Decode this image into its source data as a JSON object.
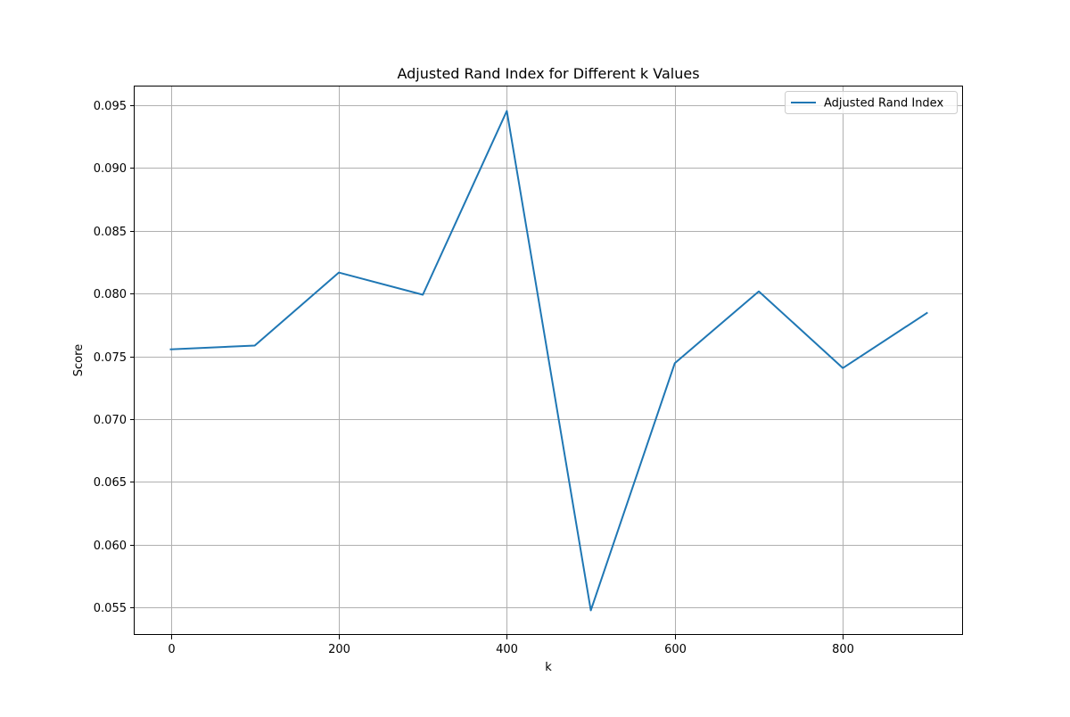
{
  "chart_data": {
    "type": "line",
    "title": "Adjusted Rand Index for Different k Values",
    "xlabel": "k",
    "ylabel": "Score",
    "x": [
      0,
      100,
      200,
      300,
      400,
      500,
      600,
      700,
      800,
      900
    ],
    "series": [
      {
        "name": "Adjusted Rand Index",
        "color": "#1f77b4",
        "values": [
          0.07556,
          0.07586,
          0.08168,
          0.07991,
          0.09455,
          0.05476,
          0.07446,
          0.08017,
          0.07407,
          0.07845
        ]
      }
    ],
    "xlim": [
      -43,
      943
    ],
    "ylim": [
      0.0528,
      0.0965
    ],
    "xticks": [
      0,
      200,
      400,
      600,
      800
    ],
    "xtick_labels": [
      "0",
      "200",
      "400",
      "600",
      "800"
    ],
    "yticks": [
      0.055,
      0.06,
      0.065,
      0.07,
      0.075,
      0.08,
      0.085,
      0.09,
      0.095
    ],
    "ytick_labels": [
      "0.055",
      "0.060",
      "0.065",
      "0.070",
      "0.075",
      "0.080",
      "0.085",
      "0.090",
      "0.095"
    ],
    "grid": true,
    "legend_position": "top-right"
  }
}
